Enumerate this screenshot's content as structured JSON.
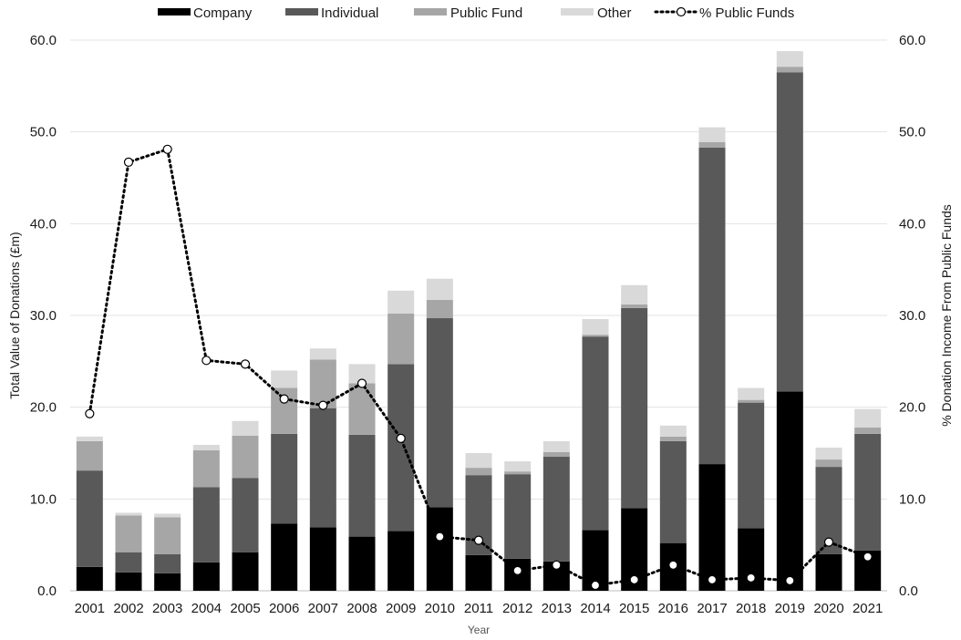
{
  "chart_data": {
    "type": "bar",
    "stacked": true,
    "categories": [
      "2001",
      "2002",
      "2003",
      "2004",
      "2005",
      "2006",
      "2007",
      "2008",
      "2009",
      "2010",
      "2011",
      "2012",
      "2013",
      "2014",
      "2015",
      "2016",
      "2017",
      "2018",
      "2019",
      "2020",
      "2021"
    ],
    "series": [
      {
        "name": "Company",
        "color": "#000000",
        "values": [
          2.6,
          2.0,
          1.9,
          3.1,
          4.2,
          7.3,
          6.9,
          5.9,
          6.5,
          9.1,
          3.9,
          3.5,
          3.2,
          6.6,
          9.0,
          5.2,
          13.8,
          6.8,
          21.7,
          4.0,
          4.4
        ]
      },
      {
        "name": "Individual",
        "color": "#595959",
        "values": [
          10.5,
          2.2,
          2.1,
          8.2,
          8.1,
          9.8,
          13.0,
          11.1,
          18.2,
          20.6,
          8.7,
          9.2,
          11.4,
          21.1,
          21.8,
          11.1,
          34.5,
          13.7,
          34.8,
          9.5,
          12.7
        ]
      },
      {
        "name": "Public Fund",
        "color": "#a6a6a6",
        "values": [
          3.2,
          4.0,
          4.0,
          4.0,
          4.6,
          5.0,
          5.3,
          5.6,
          5.5,
          2.0,
          0.8,
          0.3,
          0.5,
          0.2,
          0.4,
          0.5,
          0.6,
          0.3,
          0.6,
          0.8,
          0.7
        ]
      },
      {
        "name": "Other",
        "color": "#d9d9d9",
        "values": [
          0.5,
          0.3,
          0.4,
          0.6,
          1.6,
          1.9,
          1.2,
          2.1,
          2.5,
          2.3,
          1.6,
          1.1,
          1.2,
          1.7,
          2.1,
          1.2,
          1.6,
          1.3,
          1.7,
          1.3,
          2.0
        ]
      }
    ],
    "line": {
      "name": "% Public Funds",
      "axis": "right",
      "values": [
        19.3,
        46.7,
        48.1,
        25.1,
        24.7,
        20.9,
        20.2,
        22.6,
        16.6,
        5.9,
        5.5,
        2.2,
        2.8,
        0.6,
        1.2,
        2.8,
        1.2,
        1.4,
        1.1,
        5.3,
        3.7
      ]
    },
    "xlabel": "Year",
    "ylabel": "Total Value of Donations (£m)",
    "y2label": "% Donation Income From Public Funds",
    "ylim": [
      0,
      60
    ],
    "y2lim": [
      0,
      60
    ],
    "yticks": [
      "0.0",
      "10.0",
      "20.0",
      "30.0",
      "40.0",
      "50.0",
      "60.0"
    ],
    "y2ticks": [
      "0.0",
      "10.0",
      "20.0",
      "30.0",
      "40.0",
      "50.0",
      "60.0"
    ],
    "grid": true,
    "legend_position": "top"
  }
}
